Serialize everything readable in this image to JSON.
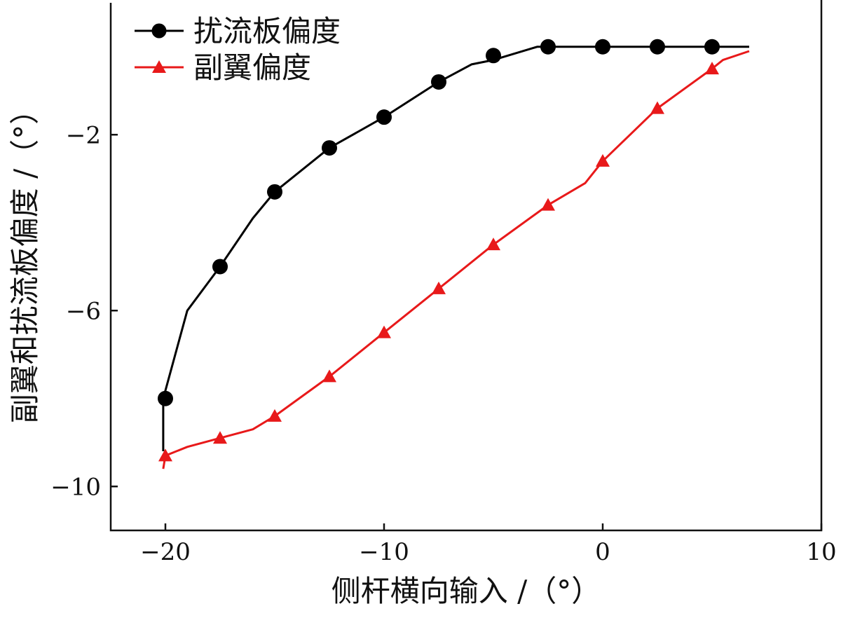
{
  "chart_data": {
    "type": "line",
    "title": "",
    "xlabel": "侧杆横向输入 /（°）",
    "ylabel": "副翼和扰流板偏度 /（°）",
    "xlim": [
      -22.5,
      10
    ],
    "ylim": [
      -11,
      1
    ],
    "xticks": [
      -20,
      -10,
      0,
      10
    ],
    "xtick_labels": [
      "−20",
      "−10",
      "0",
      "10"
    ],
    "yticks": [
      -2,
      -6,
      -10
    ],
    "ytick_labels": [
      "−2",
      "−6",
      "−10"
    ],
    "grid": false,
    "legend_position": "top-left",
    "series": [
      {
        "name": "扰流板偏度",
        "color": "#000000",
        "marker": "circle",
        "line_x": [
          -20.1,
          -20.1,
          -19,
          -17.5,
          -16,
          -15,
          -12.5,
          -10,
          -7.5,
          -6,
          -5,
          -3,
          -2.5,
          0,
          2.5,
          5,
          6.7
        ],
        "line_y": [
          -9.2,
          -8,
          -6,
          -5,
          -3.9,
          -3.3,
          -2.3,
          -1.6,
          -0.8,
          -0.4,
          -0.3,
          0,
          0,
          0,
          0,
          0,
          0
        ],
        "marker_x": [
          -20,
          -17.5,
          -15,
          -12.5,
          -10,
          -7.5,
          -5,
          -2.5,
          0,
          2.5,
          5
        ],
        "marker_y": [
          -8,
          -5,
          -3.3,
          -2.3,
          -1.6,
          -0.8,
          -0.2,
          0,
          0,
          0,
          0
        ]
      },
      {
        "name": "副翼偏度",
        "color": "#e8191a",
        "marker": "triangle",
        "line_x": [
          -20.1,
          -20,
          -19,
          -17.5,
          -16,
          -15,
          -12.5,
          -10,
          -7.5,
          -5,
          -2.5,
          -0.8,
          0,
          2.5,
          5,
          5.5,
          6.7
        ],
        "line_y": [
          -9.6,
          -9.3,
          -9.1,
          -8.9,
          -8.7,
          -8.4,
          -7.5,
          -6.5,
          -5.5,
          -4.5,
          -3.6,
          -3.1,
          -2.6,
          -1.4,
          -0.5,
          -0.3,
          -0.1
        ],
        "marker_x": [
          -20,
          -17.5,
          -15,
          -12.5,
          -10,
          -7.5,
          -5,
          -2.5,
          0,
          2.5,
          5
        ],
        "marker_y": [
          -9.3,
          -8.9,
          -8.4,
          -7.5,
          -6.5,
          -5.5,
          -4.5,
          -3.6,
          -2.6,
          -1.4,
          -0.5
        ]
      }
    ]
  }
}
